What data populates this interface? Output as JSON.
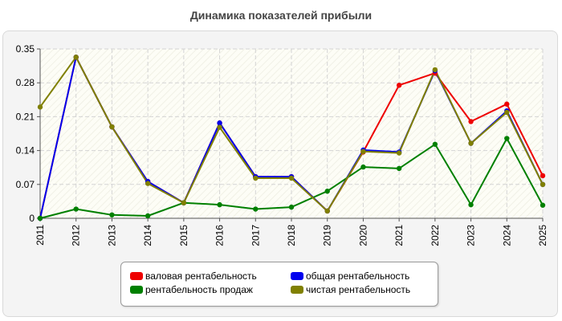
{
  "chart_data": {
    "type": "line",
    "title": "Динамика показателей прибыли",
    "x": [
      "2011",
      "2012",
      "2013",
      "2014",
      "2015",
      "2016",
      "2017",
      "2018",
      "2019",
      "2020",
      "2021",
      "2022",
      "2023",
      "2024",
      "2025"
    ],
    "yticks": [
      "0",
      "0.07",
      "0.14",
      "0.21",
      "0.28",
      "0.35"
    ],
    "ylim": [
      0,
      0.35
    ],
    "grid": true,
    "legend_position": "bottom",
    "series": [
      {
        "name": "валовая рентабельность",
        "color": "#ee0000",
        "values": [
          0,
          0.333,
          0.189,
          0.076,
          0.032,
          0.197,
          0.086,
          0.086,
          0.015,
          0.137,
          0.275,
          0.3,
          0.2,
          0.236,
          0.088
        ]
      },
      {
        "name": "общая рентабельность",
        "color": "#0000ee",
        "values": [
          0,
          0.333,
          0.189,
          0.076,
          0.032,
          0.197,
          0.086,
          0.086,
          0.015,
          0.141,
          0.137,
          0.305,
          0.155,
          0.222,
          0.07
        ]
      },
      {
        "name": "рентабельность продаж",
        "color": "#008000",
        "values": [
          0,
          0.019,
          0.007,
          0.005,
          0.032,
          0.028,
          0.019,
          0.023,
          0.056,
          0.106,
          0.103,
          0.153,
          0.028,
          0.165,
          0.027
        ]
      },
      {
        "name": "чистая рентабельность",
        "color": "#808000",
        "values": [
          0.23,
          0.333,
          0.189,
          0.072,
          0.032,
          0.188,
          0.083,
          0.083,
          0.015,
          0.138,
          0.135,
          0.307,
          0.155,
          0.219,
          0.07
        ]
      }
    ]
  }
}
